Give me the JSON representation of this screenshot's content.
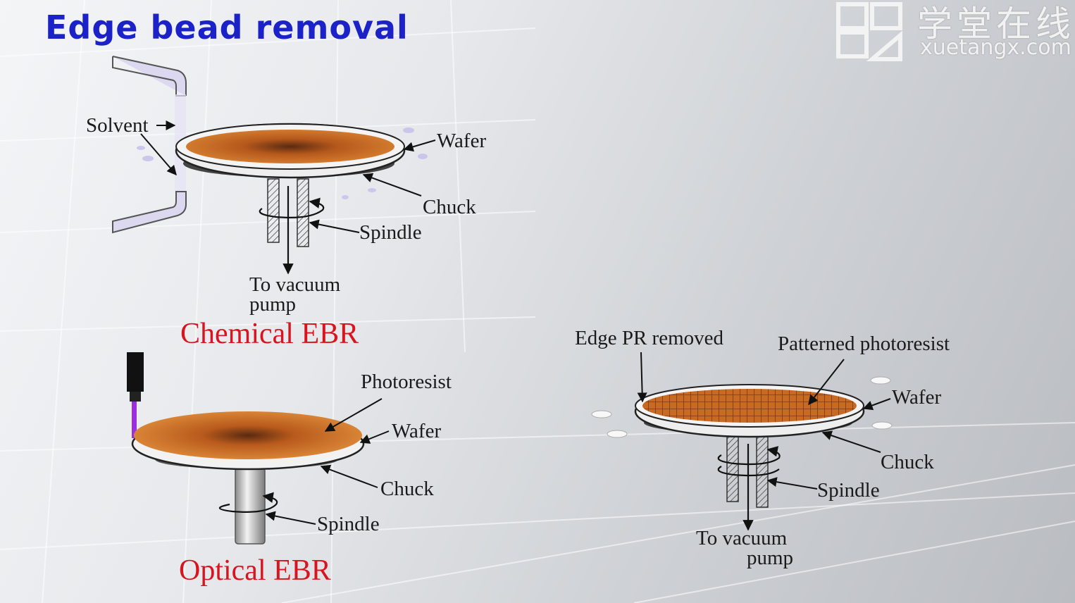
{
  "title": "Edge bead removal",
  "logo": {
    "chinese_text": "学堂在线",
    "url_text": "xuetangx.com",
    "icon": "book-logo-icon"
  },
  "chemical": {
    "caption": "Chemical EBR",
    "labels": {
      "solvent": "Solvent",
      "wafer": "Wafer",
      "chuck": "Chuck",
      "spindle": "Spindle",
      "vacuum_line1": "To vacuum",
      "vacuum_line2": "pump"
    }
  },
  "optical": {
    "caption": "Optical EBR",
    "labels": {
      "photoresist": "Photoresist",
      "wafer": "Wafer",
      "chuck": "Chuck",
      "spindle": "Spindle"
    }
  },
  "result": {
    "labels": {
      "edge_removed": "Edge PR removed",
      "patterned": "Patterned photoresist",
      "wafer": "Wafer",
      "chuck": "Chuck",
      "spindle": "Spindle",
      "vacuum_line1": "To vacuum",
      "vacuum_line2": "pump"
    }
  },
  "colors": {
    "title": "#1b22c8",
    "caption": "#d8141e",
    "resist": "#c8651e",
    "laser": "#9b2ee0",
    "nozzle": "#d9d6ee"
  }
}
